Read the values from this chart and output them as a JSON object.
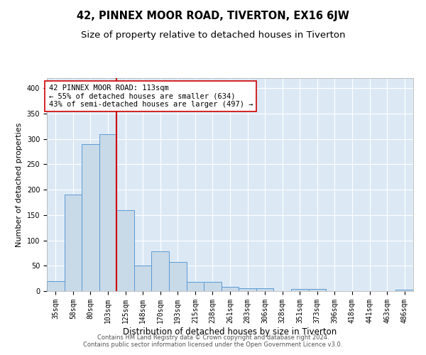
{
  "title": "42, PINNEX MOOR ROAD, TIVERTON, EX16 6JW",
  "subtitle": "Size of property relative to detached houses in Tiverton",
  "xlabel": "Distribution of detached houses by size in Tiverton",
  "ylabel": "Number of detached properties",
  "categories": [
    "35sqm",
    "58sqm",
    "80sqm",
    "103sqm",
    "125sqm",
    "148sqm",
    "170sqm",
    "193sqm",
    "215sqm",
    "238sqm",
    "261sqm",
    "283sqm",
    "306sqm",
    "328sqm",
    "351sqm",
    "373sqm",
    "396sqm",
    "418sqm",
    "441sqm",
    "463sqm",
    "486sqm"
  ],
  "values": [
    20,
    190,
    290,
    310,
    160,
    50,
    78,
    58,
    18,
    18,
    8,
    5,
    5,
    0,
    4,
    4,
    0,
    0,
    0,
    0,
    3
  ],
  "bar_color": "#c8d9e8",
  "bar_edge_color": "#5b9bd5",
  "vline_color": "#cc0000",
  "vline_index": 3,
  "annotation_line1": "42 PINNEX MOOR ROAD: 113sqm",
  "annotation_line2": "← 55% of detached houses are smaller (634)",
  "annotation_line3": "43% of semi-detached houses are larger (497) →",
  "annotation_box_color": "#ffffff",
  "annotation_box_edge": "#cc0000",
  "ylim": [
    0,
    420
  ],
  "yticks": [
    0,
    50,
    100,
    150,
    200,
    250,
    300,
    350,
    400
  ],
  "background_color": "#dce9f5",
  "footer_text": "Contains HM Land Registry data © Crown copyright and database right 2024.\nContains public sector information licensed under the Open Government Licence v3.0.",
  "title_fontsize": 10.5,
  "subtitle_fontsize": 9.5,
  "xlabel_fontsize": 8.5,
  "ylabel_fontsize": 8,
  "tick_fontsize": 7,
  "annotation_fontsize": 7.5
}
